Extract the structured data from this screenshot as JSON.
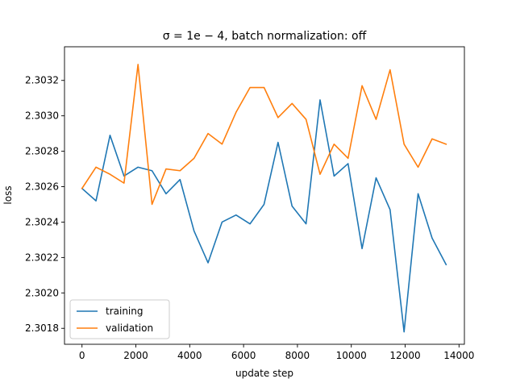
{
  "chart_data": {
    "type": "line",
    "title": "σ = 1e − 4, batch normalization: off",
    "xlabel": "update step",
    "ylabel": "loss",
    "xlim": [
      -650,
      14200
    ],
    "ylim": [
      2.30171,
      2.30339
    ],
    "xticks": [
      0,
      2000,
      4000,
      6000,
      8000,
      10000,
      12000,
      14000
    ],
    "xtick_labels": [
      "0",
      "2000",
      "4000",
      "6000",
      "8000",
      "10000",
      "12000",
      "14000"
    ],
    "yticks": [
      2.3018,
      2.302,
      2.3022,
      2.3024,
      2.3026,
      2.3028,
      2.303,
      2.3032
    ],
    "ytick_labels": [
      "2.3018",
      "2.3020",
      "2.3022",
      "2.3024",
      "2.3026",
      "2.3028",
      "2.3030",
      "2.3032"
    ],
    "grid": false,
    "legend": "lower-left",
    "x": [
      0,
      520,
      1040,
      1560,
      2080,
      2600,
      3120,
      3640,
      4160,
      4680,
      5200,
      5720,
      6240,
      6760,
      7280,
      7800,
      8320,
      8840,
      9360,
      9880,
      10400,
      10920,
      11440,
      11960,
      12480,
      13000,
      13520
    ],
    "series": [
      {
        "name": "training",
        "color": "#1f77b4",
        "values": [
          2.30259,
          2.30252,
          2.30289,
          2.30266,
          2.30271,
          2.30269,
          2.30256,
          2.30264,
          2.30235,
          2.30217,
          2.3024,
          2.30244,
          2.30239,
          2.3025,
          2.30285,
          2.30249,
          2.30239,
          2.30309,
          2.30266,
          2.30273,
          2.30225,
          2.30265,
          2.30247,
          2.30178,
          2.30256,
          2.30231,
          2.30216
        ]
      },
      {
        "name": "validation",
        "color": "#ff7f0e",
        "values": [
          2.30259,
          2.30271,
          2.30267,
          2.30262,
          2.30329,
          2.3025,
          2.3027,
          2.30269,
          2.30276,
          2.3029,
          2.30284,
          2.30302,
          2.30316,
          2.30316,
          2.30299,
          2.30307,
          2.30298,
          2.30267,
          2.30284,
          2.30276,
          2.30317,
          2.30298,
          2.30326,
          2.30284,
          2.30271,
          2.30287,
          2.30284
        ]
      }
    ]
  }
}
